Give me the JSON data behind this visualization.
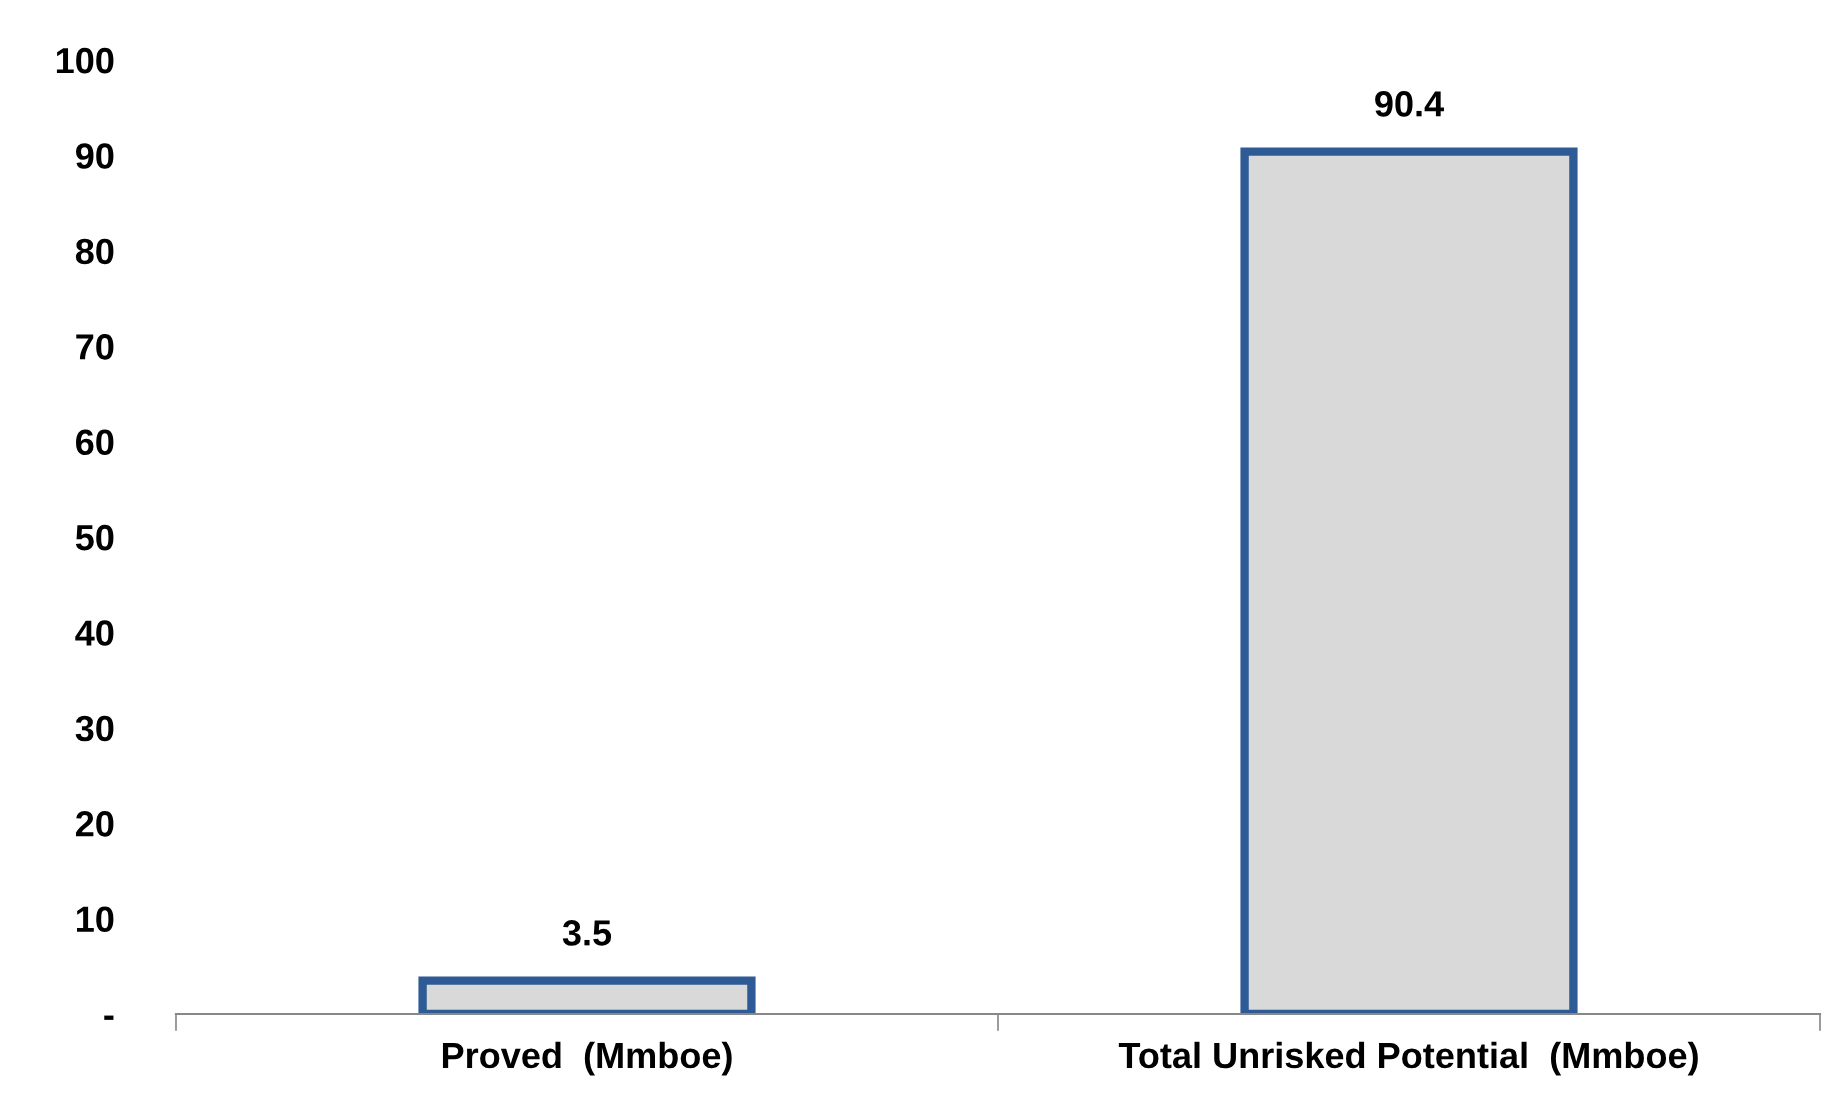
{
  "chart_data": {
    "type": "bar",
    "categories": [
      "Proved  (Mmboe)",
      "Total Unrisked Potential  (Mmboe)"
    ],
    "values": [
      3.5,
      90.4
    ],
    "color": "#d9d9d9",
    "ylim": [
      0,
      100
    ],
    "yticks": [
      {
        "value": 0,
        "label": "-"
      },
      10,
      20,
      30,
      40,
      50,
      60,
      70,
      80,
      90,
      100
    ],
    "data_labels": true,
    "grid": false,
    "legend": false
  }
}
